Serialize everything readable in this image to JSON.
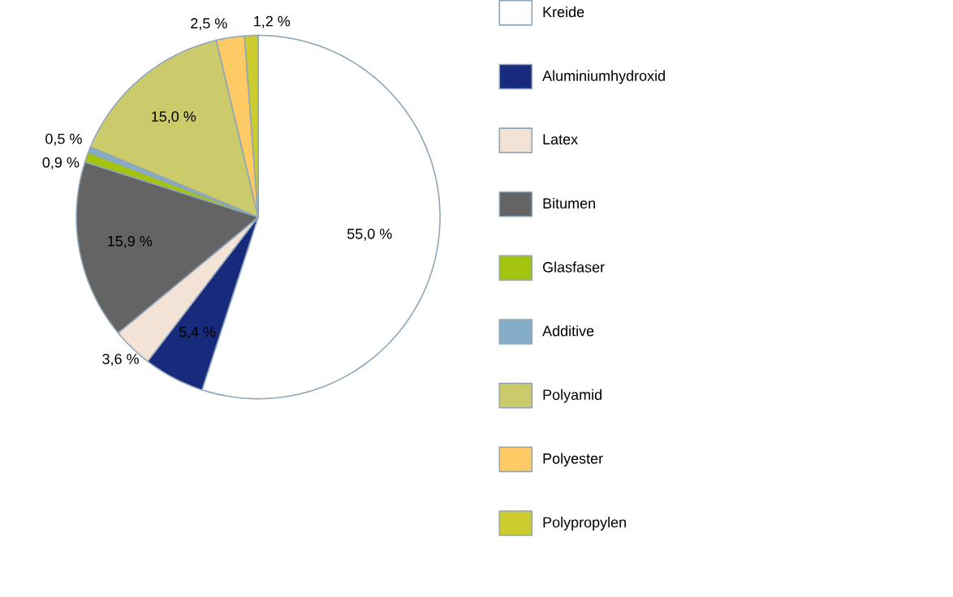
{
  "chart_data": {
    "type": "pie",
    "categories": [
      "Kreide",
      "Aluminiumhydroxid",
      "Latex",
      "Bitumen",
      "Glasfaser",
      "Additive",
      "Polyamid",
      "Polyester",
      "Polypropylen"
    ],
    "values": [
      55.0,
      5.4,
      3.6,
      15.9,
      0.9,
      0.5,
      15.0,
      2.5,
      1.2
    ],
    "value_labels": [
      "55,0  %",
      "5,4 %",
      "3,6 %",
      "15,9 %",
      "0,9 %",
      "0,5 %",
      "15,0 %",
      "2,5 %",
      "1,2 %"
    ],
    "colors": [
      "#ffffff",
      "#172a7c",
      "#f3e3d7",
      "#646464",
      "#a3c30f",
      "#85adc8",
      "#cbcb6b",
      "#fdca66",
      "#cccc2e"
    ],
    "legend": "right"
  }
}
